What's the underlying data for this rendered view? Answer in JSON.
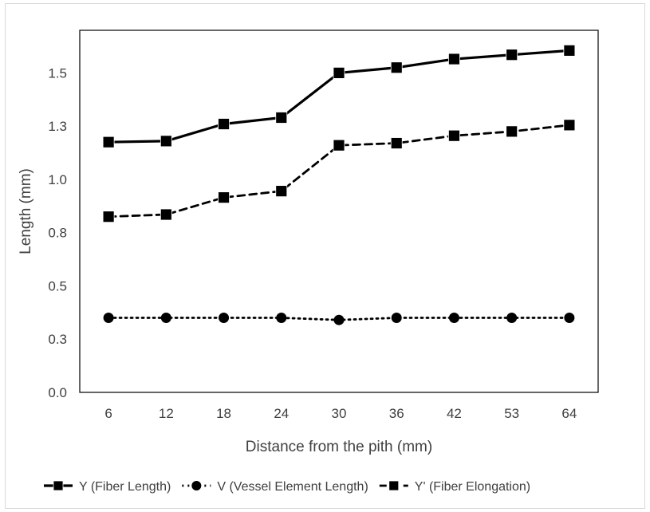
{
  "chart_data": {
    "type": "line",
    "xlabel": "Distance from the pith (mm)",
    "ylabel": "Length (mm)",
    "categories": [
      "6",
      "12",
      "18",
      "24",
      "30",
      "36",
      "42",
      "53",
      "64"
    ],
    "y_tick_labels": [
      "0.0",
      "0.3",
      "0.5",
      "0.8",
      "1.0",
      "1.3",
      "1.5"
    ],
    "ylim": [
      0,
      1.7
    ],
    "grid": false,
    "legend_position": "bottom",
    "series": [
      {
        "name": "Y (Fiber Length)",
        "values": [
          1.175,
          1.18,
          1.26,
          1.29,
          1.5,
          1.525,
          1.565,
          1.585,
          1.605
        ],
        "line_style": "solid",
        "marker": "square",
        "color": "#000000"
      },
      {
        "name": "V (Vessel Element Length)",
        "values": [
          0.35,
          0.35,
          0.35,
          0.35,
          0.34,
          0.35,
          0.35,
          0.35,
          0.35
        ],
        "line_style": "dotted",
        "marker": "circle",
        "color": "#000000"
      },
      {
        "name": "Y' (Fiber Elongation)",
        "values": [
          0.825,
          0.835,
          0.915,
          0.945,
          1.16,
          1.17,
          1.205,
          1.225,
          1.255
        ],
        "line_style": "dashed",
        "marker": "square",
        "color": "#000000"
      }
    ]
  }
}
